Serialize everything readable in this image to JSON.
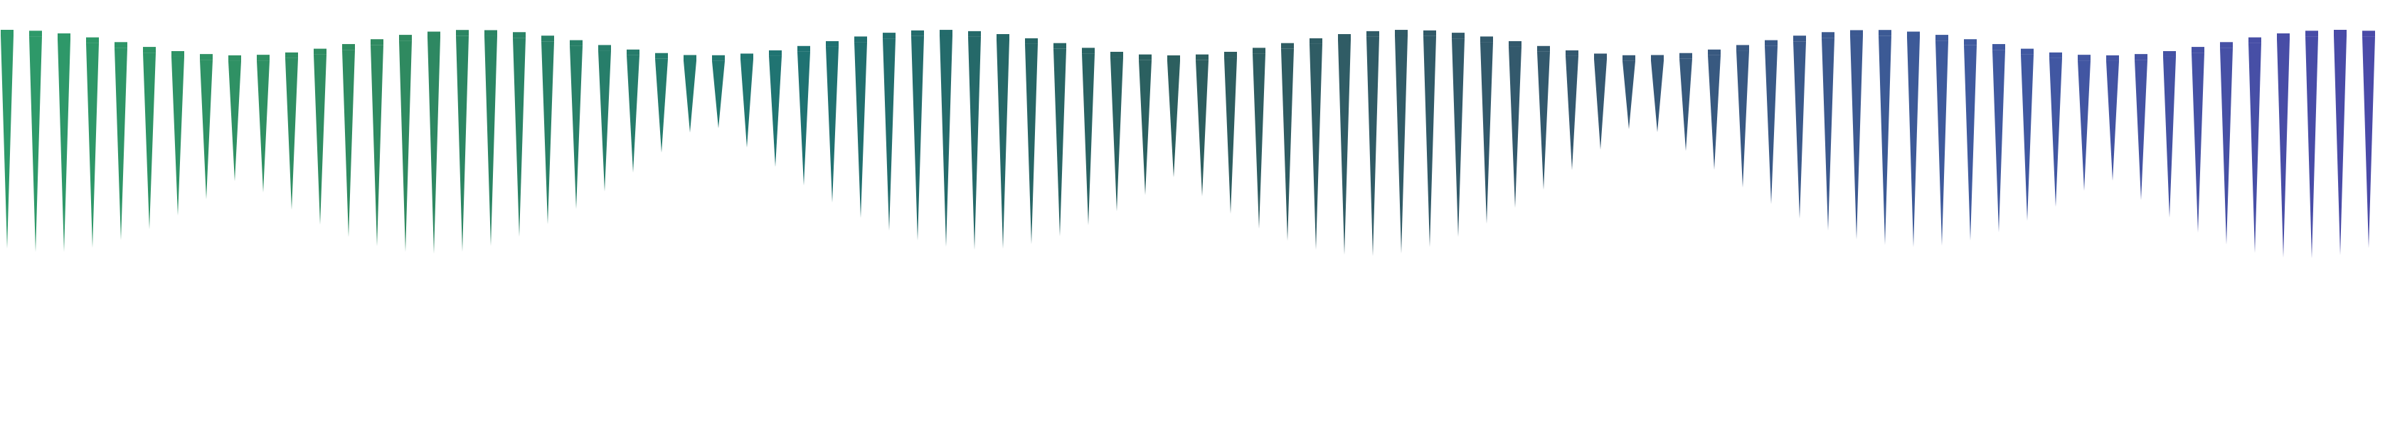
{
  "pattern": {
    "name": "tapered-spike-wave",
    "background": "#ffffff",
    "gradient_stops": [
      "#2e9a6a",
      "#2f8a60",
      "#1f7373",
      "#2d5e5e",
      "#34586f",
      "#3f5aa0",
      "#4a4aa8"
    ],
    "spike_count": 84,
    "cap_color_same_as_spike": true
  }
}
